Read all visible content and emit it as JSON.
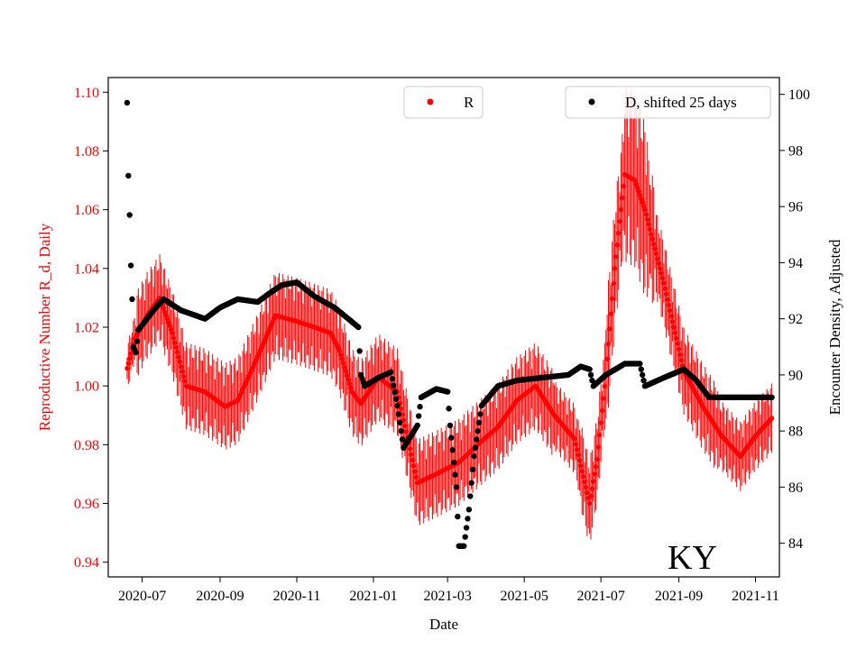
{
  "chart_data": {
    "type": "scatter",
    "xlabel": "Date",
    "ylabel_left": "Reproductive Number R_d, Daily",
    "ylabel_right": "Encounter Density, Adjusted",
    "annotation": "KY",
    "x_ticks": [
      "2020-07-01",
      "2020-09-01",
      "2020-11-01",
      "2021-01-01",
      "2021-03-01",
      "2021-05-01",
      "2021-07-01",
      "2021-09-01",
      "2021-11-01"
    ],
    "x_tick_labels": [
      "2020-07",
      "2020-09",
      "2020-11",
      "2021-01",
      "2021-03",
      "2021-05",
      "2021-07",
      "2021-09",
      "2021-11"
    ],
    "xlim": [
      "2020-06-04",
      "2021-11-20"
    ],
    "ylim_left": [
      0.935,
      1.105
    ],
    "y_ticks_left": [
      0.94,
      0.96,
      0.98,
      1.0,
      1.02,
      1.04,
      1.06,
      1.08,
      1.1
    ],
    "y_tick_labels_left": [
      "0.94",
      "0.96",
      "0.98",
      "1.00",
      "1.02",
      "1.04",
      "1.06",
      "1.08",
      "1.10"
    ],
    "ylim_right": [
      82.8,
      100.6
    ],
    "y_ticks_right": [
      84,
      86,
      88,
      90,
      92,
      94,
      96,
      98,
      100
    ],
    "y_tick_labels_right": [
      "84",
      "86",
      "88",
      "90",
      "92",
      "94",
      "96",
      "98",
      "100"
    ],
    "grid": false,
    "legend_left": {
      "placement": "top-center",
      "label": "R",
      "color": "#ff0000"
    },
    "legend_right": {
      "placement": "top-right",
      "label": "D, shifted 25 days",
      "color": "#000000"
    },
    "series": [
      {
        "name": "R",
        "axis": "left",
        "color": "#ff0000",
        "marker": "dot",
        "error_bars": true,
        "x_range": [
          "2020-06-19",
          "2021-11-14"
        ],
        "knots": [
          [
            "2020-06-19",
            1.006
          ],
          [
            "2020-06-25",
            1.016
          ],
          [
            "2020-07-05",
            1.024
          ],
          [
            "2020-07-15",
            1.03
          ],
          [
            "2020-07-25",
            1.018
          ],
          [
            "2020-08-05",
            1.0
          ],
          [
            "2020-08-20",
            0.998
          ],
          [
            "2020-09-05",
            0.993
          ],
          [
            "2020-09-15",
            0.995
          ],
          [
            "2020-10-01",
            1.01
          ],
          [
            "2020-10-15",
            1.024
          ],
          [
            "2020-11-01",
            1.022
          ],
          [
            "2020-11-15",
            1.02
          ],
          [
            "2020-11-28",
            1.018
          ],
          [
            "2020-12-05",
            1.012
          ],
          [
            "2020-12-15",
            0.998
          ],
          [
            "2020-12-22",
            0.994
          ],
          [
            "2021-01-05",
            1.003
          ],
          [
            "2021-01-20",
            0.998
          ],
          [
            "2021-02-05",
            0.967
          ],
          [
            "2021-02-20",
            0.97
          ],
          [
            "2021-03-10",
            0.974
          ],
          [
            "2021-03-25",
            0.98
          ],
          [
            "2021-04-10",
            0.986
          ],
          [
            "2021-04-25",
            0.995
          ],
          [
            "2021-05-10",
            1.0
          ],
          [
            "2021-05-25",
            0.99
          ],
          [
            "2021-06-10",
            0.982
          ],
          [
            "2021-06-22",
            0.96
          ],
          [
            "2021-06-28",
            0.975
          ],
          [
            "2021-07-05",
            1.004
          ],
          [
            "2021-07-12",
            1.04
          ],
          [
            "2021-07-20",
            1.072
          ],
          [
            "2021-07-28",
            1.07
          ],
          [
            "2021-08-05",
            1.06
          ],
          [
            "2021-08-20",
            1.035
          ],
          [
            "2021-09-05",
            1.005
          ],
          [
            "2021-09-20",
            0.993
          ],
          [
            "2021-10-05",
            0.983
          ],
          [
            "2021-10-20",
            0.976
          ],
          [
            "2021-11-01",
            0.983
          ],
          [
            "2021-11-14",
            0.989
          ]
        ]
      },
      {
        "name": "D, shifted 25 days",
        "axis": "right",
        "color": "#000000",
        "marker": "dot",
        "x_range": [
          "2020-06-19",
          "2021-11-14"
        ],
        "knots": [
          [
            "2020-06-19",
            99.7
          ],
          [
            "2020-06-20",
            97.1
          ],
          [
            "2020-06-21",
            95.7
          ],
          [
            "2020-06-22",
            93.9
          ],
          [
            "2020-06-23",
            92.7
          ],
          [
            "2020-06-24",
            91.0
          ],
          [
            "2020-06-26",
            90.8
          ],
          [
            "2020-06-28",
            91.6
          ],
          [
            "2020-07-10",
            92.3
          ],
          [
            "2020-07-18",
            92.7
          ],
          [
            "2020-08-01",
            92.3
          ],
          [
            "2020-08-20",
            92.0
          ],
          [
            "2020-09-01",
            92.4
          ],
          [
            "2020-09-15",
            92.7
          ],
          [
            "2020-10-01",
            92.6
          ],
          [
            "2020-10-10",
            92.9
          ],
          [
            "2020-10-20",
            93.2
          ],
          [
            "2020-11-01",
            93.3
          ],
          [
            "2020-11-15",
            92.8
          ],
          [
            "2020-12-01",
            92.4
          ],
          [
            "2020-12-12",
            92.0
          ],
          [
            "2020-12-20",
            91.7
          ],
          [
            "2020-12-22",
            90.0
          ],
          [
            "2020-12-25",
            89.6
          ],
          [
            "2021-01-05",
            89.9
          ],
          [
            "2021-01-15",
            90.1
          ],
          [
            "2021-01-20",
            88.9
          ],
          [
            "2021-01-25",
            87.4
          ],
          [
            "2021-02-05",
            88.2
          ],
          [
            "2021-02-08",
            89.2
          ],
          [
            "2021-02-20",
            89.5
          ],
          [
            "2021-03-01",
            89.4
          ],
          [
            "2021-03-03",
            88.2
          ],
          [
            "2021-03-08",
            86.0
          ],
          [
            "2021-03-10",
            83.9
          ],
          [
            "2021-03-14",
            83.9
          ],
          [
            "2021-03-18",
            85.2
          ],
          [
            "2021-03-22",
            87.1
          ],
          [
            "2021-03-28",
            88.9
          ],
          [
            "2021-04-10",
            89.6
          ],
          [
            "2021-04-25",
            89.8
          ],
          [
            "2021-05-15",
            89.9
          ],
          [
            "2021-06-05",
            90.0
          ],
          [
            "2021-06-15",
            90.3
          ],
          [
            "2021-06-22",
            90.2
          ],
          [
            "2021-06-25",
            89.6
          ],
          [
            "2021-07-05",
            90.0
          ],
          [
            "2021-07-20",
            90.4
          ],
          [
            "2021-08-01",
            90.4
          ],
          [
            "2021-08-05",
            89.6
          ],
          [
            "2021-08-20",
            89.9
          ],
          [
            "2021-09-05",
            90.2
          ],
          [
            "2021-09-15",
            89.8
          ],
          [
            "2021-09-25",
            89.2
          ],
          [
            "2021-11-14",
            89.2
          ]
        ]
      }
    ]
  }
}
